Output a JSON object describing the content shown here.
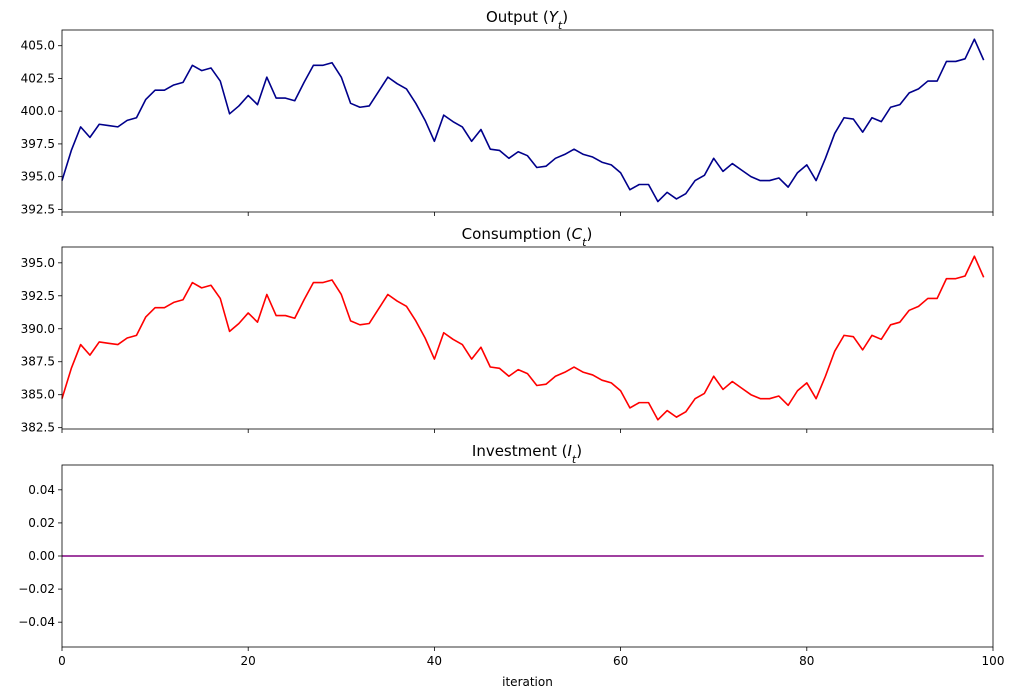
{
  "chart_data": [
    {
      "type": "line",
      "title": "Output (Y_t)",
      "title_text": "Output (",
      "title_var": "Y",
      "title_sub": "t",
      "title_close": ")",
      "color": "#00008b",
      "xlim": [
        0,
        100
      ],
      "ylim": [
        392.3,
        406.2
      ],
      "yticks": [
        392.5,
        395.0,
        397.5,
        400.0,
        402.5,
        405.0
      ],
      "ytick_labels": [
        "392.5",
        "395.0",
        "397.5",
        "400.0",
        "402.5",
        "405.0"
      ],
      "xticks": [
        0,
        20,
        40,
        60,
        80,
        100
      ],
      "show_xtick_labels": false,
      "xlabel": "",
      "x": [
        0,
        1,
        2,
        3,
        4,
        5,
        6,
        7,
        8,
        9,
        10,
        11,
        12,
        13,
        14,
        15,
        16,
        17,
        18,
        19,
        20,
        21,
        22,
        23,
        24,
        25,
        26,
        27,
        28,
        29,
        30,
        31,
        32,
        33,
        34,
        35,
        36,
        37,
        38,
        39,
        40,
        41,
        42,
        43,
        44,
        45,
        46,
        47,
        48,
        49,
        50,
        51,
        52,
        53,
        54,
        55,
        56,
        57,
        58,
        59,
        60,
        61,
        62,
        63,
        64,
        65,
        66,
        67,
        68,
        69,
        70,
        71,
        72,
        73,
        74,
        75,
        76,
        77,
        78,
        79,
        80,
        81,
        82,
        83,
        84,
        85,
        86,
        87,
        88,
        89,
        90,
        91,
        92,
        93,
        94,
        95,
        96,
        97,
        98,
        99
      ],
      "values": [
        394.7,
        397.0,
        398.8,
        398.0,
        399.0,
        398.9,
        398.8,
        399.3,
        399.5,
        400.9,
        401.6,
        401.6,
        402.0,
        402.2,
        403.5,
        403.1,
        403.3,
        402.3,
        399.8,
        400.4,
        401.2,
        400.5,
        402.6,
        401.0,
        401.0,
        400.8,
        402.2,
        403.5,
        403.5,
        403.7,
        402.6,
        400.6,
        400.3,
        400.4,
        401.5,
        402.6,
        402.1,
        401.7,
        400.6,
        399.3,
        397.7,
        399.7,
        399.2,
        398.8,
        397.7,
        398.6,
        397.1,
        397.0,
        396.4,
        396.9,
        396.6,
        395.7,
        395.8,
        396.4,
        396.7,
        397.1,
        396.7,
        396.5,
        396.1,
        395.9,
        395.3,
        394.0,
        394.4,
        394.4,
        393.1,
        393.8,
        393.3,
        393.7,
        394.7,
        395.1,
        396.4,
        395.4,
        396.0,
        395.5,
        395.0,
        394.7,
        394.7,
        394.9,
        394.2,
        395.3,
        395.9,
        394.7,
        396.4,
        398.3,
        399.5,
        399.4,
        398.4,
        399.5,
        399.2,
        400.3,
        400.5,
        401.4,
        401.7,
        402.3,
        402.3,
        403.8,
        403.8,
        404.0,
        405.5,
        403.9
      ]
    },
    {
      "type": "line",
      "title": "Consumption (C_t)",
      "title_text": "Consumption (",
      "title_var": "C",
      "title_sub": "t",
      "title_close": ")",
      "color": "#ff0000",
      "xlim": [
        0,
        100
      ],
      "ylim": [
        382.4,
        396.2
      ],
      "yticks": [
        382.5,
        385.0,
        387.5,
        390.0,
        392.5,
        395.0
      ],
      "ytick_labels": [
        "382.5",
        "385.0",
        "387.5",
        "390.0",
        "392.5",
        "395.0"
      ],
      "xticks": [
        0,
        20,
        40,
        60,
        80,
        100
      ],
      "show_xtick_labels": false,
      "xlabel": "",
      "x": [
        0,
        1,
        2,
        3,
        4,
        5,
        6,
        7,
        8,
        9,
        10,
        11,
        12,
        13,
        14,
        15,
        16,
        17,
        18,
        19,
        20,
        21,
        22,
        23,
        24,
        25,
        26,
        27,
        28,
        29,
        30,
        31,
        32,
        33,
        34,
        35,
        36,
        37,
        38,
        39,
        40,
        41,
        42,
        43,
        44,
        45,
        46,
        47,
        48,
        49,
        50,
        51,
        52,
        53,
        54,
        55,
        56,
        57,
        58,
        59,
        60,
        61,
        62,
        63,
        64,
        65,
        66,
        67,
        68,
        69,
        70,
        71,
        72,
        73,
        74,
        75,
        76,
        77,
        78,
        79,
        80,
        81,
        82,
        83,
        84,
        85,
        86,
        87,
        88,
        89,
        90,
        91,
        92,
        93,
        94,
        95,
        96,
        97,
        98,
        99
      ],
      "values": [
        384.7,
        387.0,
        388.8,
        388.0,
        389.0,
        388.9,
        388.8,
        389.3,
        389.5,
        390.9,
        391.6,
        391.6,
        392.0,
        392.2,
        393.5,
        393.1,
        393.3,
        392.3,
        389.8,
        390.4,
        391.2,
        390.5,
        392.6,
        391.0,
        391.0,
        390.8,
        392.2,
        393.5,
        393.5,
        393.7,
        392.6,
        390.6,
        390.3,
        390.4,
        391.5,
        392.6,
        392.1,
        391.7,
        390.6,
        389.3,
        387.7,
        389.7,
        389.2,
        388.8,
        387.7,
        388.6,
        387.1,
        387.0,
        386.4,
        386.9,
        386.6,
        385.7,
        385.8,
        386.4,
        386.7,
        387.1,
        386.7,
        386.5,
        386.1,
        385.9,
        385.3,
        384.0,
        384.4,
        384.4,
        383.1,
        383.8,
        383.3,
        383.7,
        384.7,
        385.1,
        386.4,
        385.4,
        386.0,
        385.5,
        385.0,
        384.7,
        384.7,
        384.9,
        384.2,
        385.3,
        385.9,
        384.7,
        386.4,
        388.3,
        389.5,
        389.4,
        388.4,
        389.5,
        389.2,
        390.3,
        390.5,
        391.4,
        391.7,
        392.3,
        392.3,
        393.8,
        393.8,
        394.0,
        395.5,
        393.9
      ]
    },
    {
      "type": "line",
      "title": "Investment (I_t)",
      "title_text": "Investment (",
      "title_var": "I",
      "title_sub": "t",
      "title_close": ")",
      "color": "#800080",
      "xlim": [
        0,
        100
      ],
      "ylim": [
        -0.055,
        0.055
      ],
      "yticks": [
        -0.04,
        -0.02,
        0.0,
        0.02,
        0.04
      ],
      "ytick_labels": [
        "−0.04",
        "−0.02",
        "0.00",
        "0.02",
        "0.04"
      ],
      "xticks": [
        0,
        20,
        40,
        60,
        80,
        100
      ],
      "xtick_labels": [
        "0",
        "20",
        "40",
        "60",
        "80",
        "100"
      ],
      "show_xtick_labels": true,
      "xlabel": "iteration",
      "x": [
        0,
        99
      ],
      "values": [
        0,
        0
      ]
    }
  ]
}
